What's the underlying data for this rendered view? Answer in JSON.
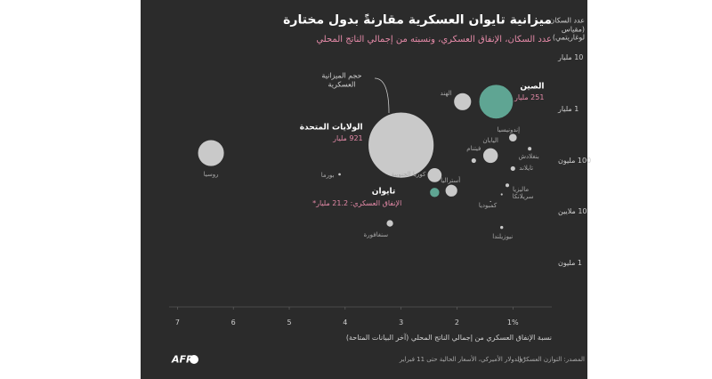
{
  "chart_data": {
    "type": "bubble",
    "title": "ميزانية تايوان العسكرية مقارنةً بدول مختارة",
    "subtitle": "عدد السكان، الإنفاق العسكري، ونسبته من إجمالي الناتج المحلي",
    "y_label": "عدد السكان (مقياس لوغاريتمي)",
    "x_label": "نسبة الإنفاق العسكري من إجمالي الناتج المحلي (آخر البيانات المتاحة)",
    "size_legend": "حجم الميزانية العسكرية",
    "categories": [
      "الولايات المتحدة",
      "الصين",
      "الهند",
      "روسيا",
      "اليابان",
      "إندونيسيا",
      "بنغلادش",
      "فيتنام",
      "تايلاند",
      "ماليزيا",
      "سريلانكا",
      "كمبوديا",
      "كوريا الجنوبية",
      "أستراليا",
      "تايوان",
      "بورما",
      "سنغافورة",
      "نيوزيلندا"
    ],
    "x": [
      3.0,
      1.3,
      1.9,
      6.4,
      1.4,
      1.0,
      0.7,
      1.7,
      1.0,
      1.1,
      1.2,
      1.4,
      2.4,
      2.1,
      2.4,
      4.1,
      3.2,
      1.2
    ],
    "values": [
      200000000,
      1400000000,
      1400000000,
      140000000,
      125000000,
      280000000,
      170000000,
      100000000,
      70000000,
      33000000,
      22000000,
      16000000,
      52000000,
      26000000,
      24000000,
      54000000,
      6000000,
      5000000
    ],
    "sizes": [
      921,
      251,
      67,
      150,
      50,
      15,
      4,
      6,
      6,
      4,
      1.5,
      0.7,
      46,
      33,
      21.2,
      2,
      11,
      3
    ],
    "size_labels": [
      "921 مليار",
      "251 مليار",
      null,
      null,
      null,
      null,
      null,
      null,
      null,
      null,
      null,
      null,
      null,
      null,
      "الإنفاق العسكري: 21.2 مليار*",
      null,
      null,
      null
    ],
    "colors": [
      "#c9c9c9",
      "#5fa593",
      "#c9c9c9",
      "#c9c9c9",
      "#c9c9c9",
      "#c9c9c9",
      "#c9c9c9",
      "#c9c9c9",
      "#c9c9c9",
      "#c9c9c9",
      "#c9c9c9",
      "#c9c9c9",
      "#c9c9c9",
      "#c9c9c9",
      "#5fa593",
      "#c9c9c9",
      "#c9c9c9",
      "#c9c9c9"
    ],
    "xlim": [
      7.2,
      0.5
    ],
    "xticks": [
      7,
      6,
      5,
      4,
      3,
      2,
      {
        "value": 1,
        "label": "1%"
      }
    ],
    "ylim": [
      500000,
      20000000000
    ],
    "log_y": true,
    "yticks": [
      {
        "value": 1000000,
        "label": "1 مليون"
      },
      {
        "value": 10000000,
        "label": "10 ملايين"
      },
      {
        "value": 100000000,
        "label": "100 مليون"
      },
      {
        "value": 1000000000,
        "label": "1 مليار"
      },
      {
        "value": 10000000000,
        "label": "10 مليار"
      }
    ],
    "grid": false,
    "footnote": "*بالدولار الأميركي، الأسعار الحالية حتى 11 فبراير",
    "source": "المصدر: التوازن العسكري",
    "logo": "AFP"
  }
}
